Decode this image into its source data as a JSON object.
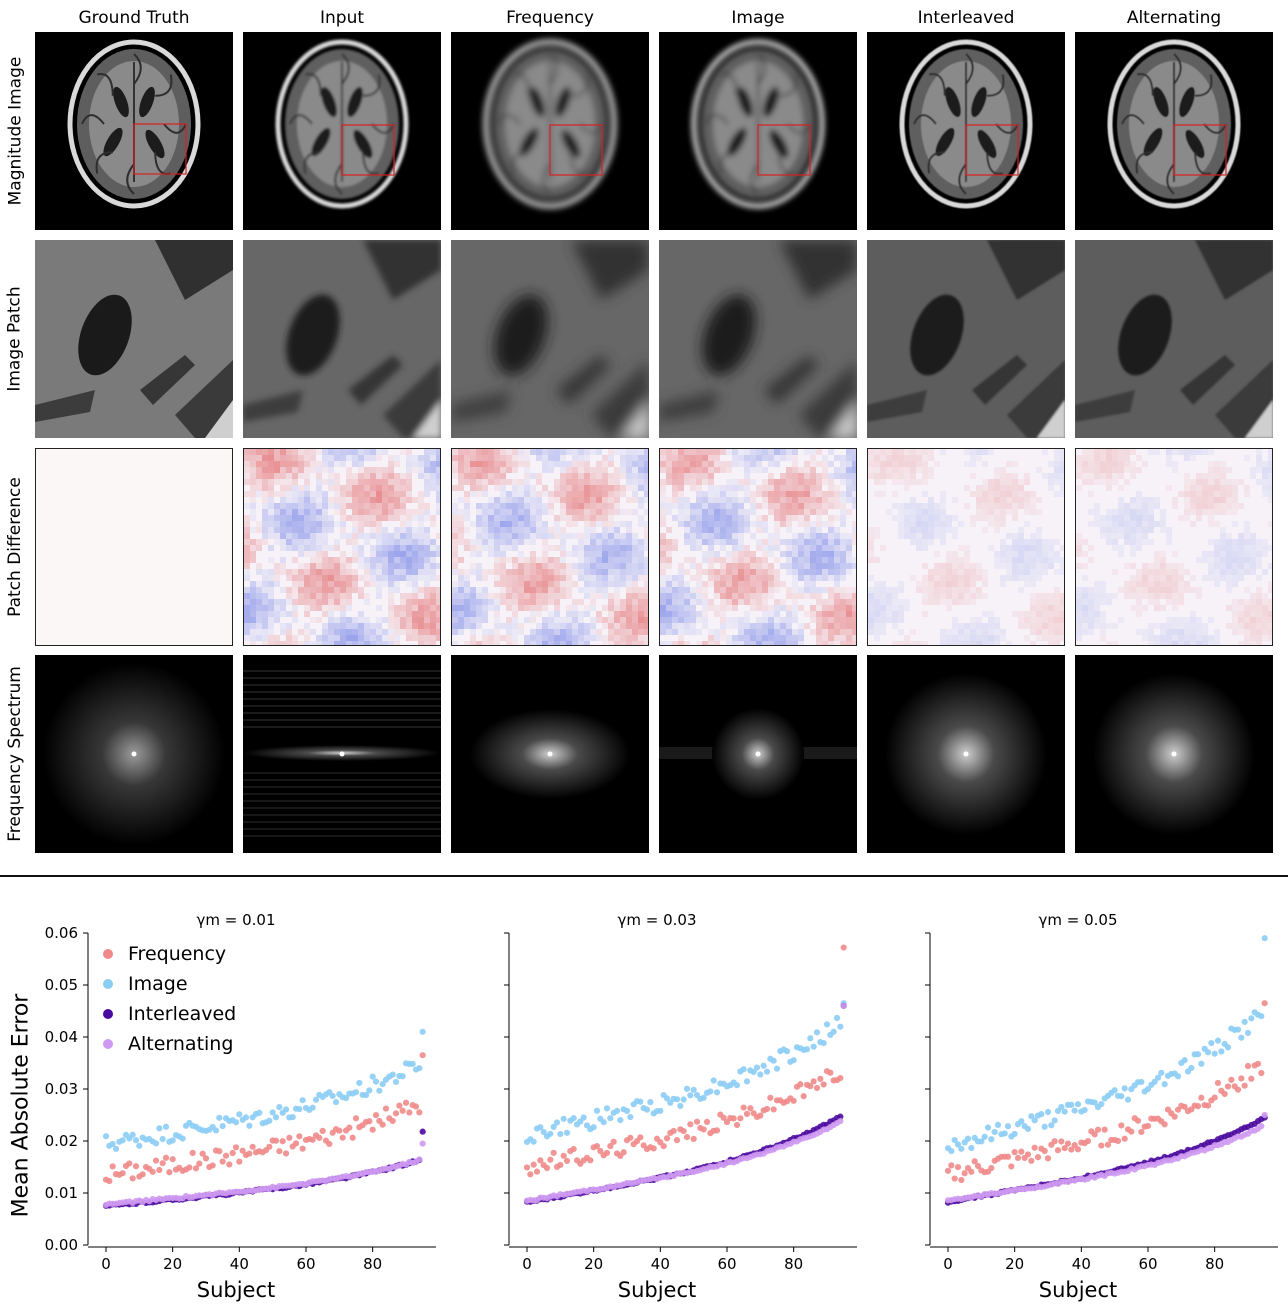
{
  "figure": {
    "columns": [
      "Ground Truth",
      "Input",
      "Frequency",
      "Image",
      "Interleaved",
      "Alternating"
    ],
    "rows": [
      "Magnitude Image",
      "Image Patch",
      "Patch Difference",
      "Frequency Spectrum"
    ]
  },
  "chart_data": [
    {
      "type": "scatter",
      "title": "γm = 0.01",
      "xlabel": "Subject",
      "ylabel": "Mean Absolute Error",
      "xticks": [
        0,
        20,
        40,
        60,
        80
      ],
      "yticks": [
        "0.00",
        "0.01",
        "0.02",
        "0.03",
        "0.04",
        "0.05",
        "0.06"
      ],
      "xlim": [
        -3,
        99
      ],
      "ylim": [
        0,
        0.06
      ],
      "legend": "top-left",
      "series": [
        {
          "name": "Frequency",
          "color": "#f08a8a",
          "start": 0.0135,
          "end": 0.0275,
          "max": 0.0365,
          "noise": 0.0018
        },
        {
          "name": "Image",
          "color": "#8ccdf5",
          "start": 0.0195,
          "end": 0.035,
          "max": 0.041,
          "noise": 0.0017
        },
        {
          "name": "Interleaved",
          "color": "#4b0a9e",
          "start": 0.0075,
          "end": 0.0165,
          "max": 0.0218,
          "noise": 0.0002
        },
        {
          "name": "Alternating",
          "color": "#cf9af2",
          "start": 0.0078,
          "end": 0.0165,
          "max": 0.0195,
          "noise": 0.0002
        }
      ]
    },
    {
      "type": "scatter",
      "title": "γm = 0.03",
      "xlabel": "Subject",
      "ylabel": "",
      "xticks": [
        0,
        20,
        40,
        60,
        80
      ],
      "xlim": [
        -3,
        99
      ],
      "ylim": [
        0,
        0.06
      ],
      "series": [
        {
          "name": "Frequency",
          "color": "#f08a8a",
          "start": 0.015,
          "end": 0.034,
          "max": 0.0572,
          "noise": 0.0017
        },
        {
          "name": "Image",
          "color": "#8ccdf5",
          "start": 0.021,
          "end": 0.043,
          "max": 0.0465,
          "noise": 0.0017
        },
        {
          "name": "Interleaved",
          "color": "#4b0a9e",
          "start": 0.0082,
          "end": 0.025,
          "max": 0.046,
          "noise": 0.0002
        },
        {
          "name": "Alternating",
          "color": "#cf9af2",
          "start": 0.0085,
          "end": 0.024,
          "max": 0.046,
          "noise": 0.0002
        }
      ]
    },
    {
      "type": "scatter",
      "title": "γm = 0.05",
      "xlabel": "Subject",
      "ylabel": "",
      "xticks": [
        0,
        20,
        40,
        60,
        80
      ],
      "xlim": [
        -3,
        99
      ],
      "ylim": [
        0,
        0.06
      ],
      "series": [
        {
          "name": "Frequency",
          "color": "#f08a8a",
          "start": 0.0135,
          "end": 0.035,
          "max": 0.0465,
          "noise": 0.0018
        },
        {
          "name": "Image",
          "color": "#8ccdf5",
          "start": 0.019,
          "end": 0.045,
          "max": 0.059,
          "noise": 0.0017
        },
        {
          "name": "Interleaved",
          "color": "#4b0a9e",
          "start": 0.0083,
          "end": 0.0245,
          "max": 0.0245,
          "noise": 0.0002
        },
        {
          "name": "Alternating",
          "color": "#cf9af2",
          "start": 0.0085,
          "end": 0.023,
          "max": 0.025,
          "noise": 0.0002
        }
      ]
    }
  ]
}
